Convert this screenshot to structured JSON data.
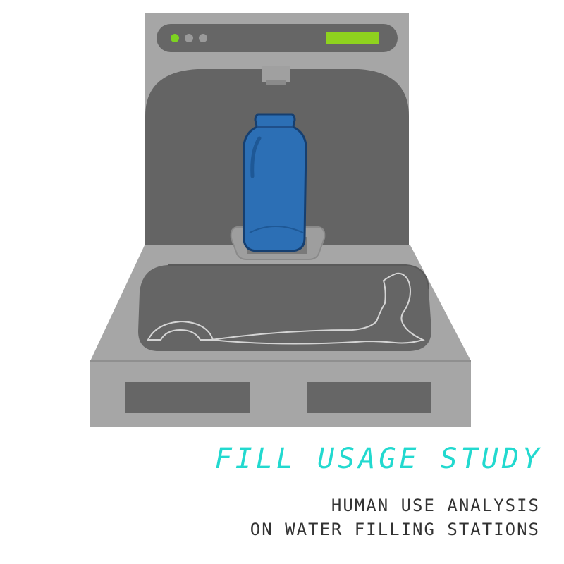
{
  "title": "FILL USAGE STUDY",
  "subtitle": {
    "line1": "HUMAN USE ANALYSIS",
    "line2": "ON WATER FILLING STATIONS"
  },
  "colors": {
    "accent": "#22d9cf",
    "panel_light": "#a6a6a6",
    "panel_dark": "#646464",
    "bottle": "#2c6fb5",
    "indicator_green": "#7dd321",
    "display_green": "#8fd21e"
  },
  "icons": [
    "water-station-illustration",
    "water-bottle-icon",
    "status-led-icon",
    "display-screen-icon"
  ]
}
